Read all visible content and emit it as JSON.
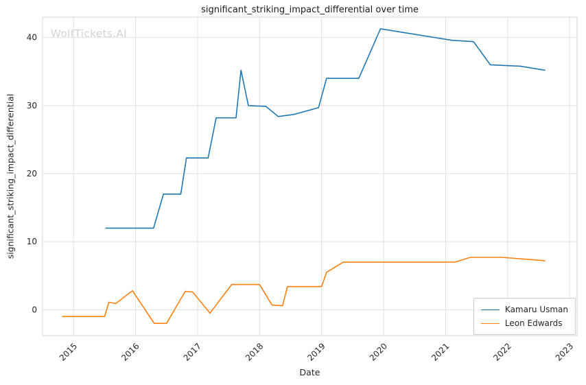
{
  "chart_data": {
    "type": "line",
    "title": "significant_striking_impact_differential over time",
    "xlabel": "Date",
    "ylabel": "significant_striking_impact_differential",
    "watermark": "WolfTickets.AI",
    "grid": true,
    "legend_position": "lower right",
    "xlim": [
      2014.5,
      2023.12
    ],
    "ylim": [
      -3.8,
      43.0
    ],
    "xticks": [
      2015,
      2016,
      2017,
      2018,
      2019,
      2020,
      2021,
      2022,
      2023
    ],
    "yticks": [
      0,
      10,
      20,
      30,
      40
    ],
    "colors": {
      "grid": "#e0e0e0",
      "border": "#d5d5d5",
      "tick_text": "#262626"
    },
    "series": [
      {
        "name": "Kamaru Usman",
        "color": "#1f77b4",
        "points": [
          [
            2015.52,
            12.0
          ],
          [
            2016.29,
            12.0
          ],
          [
            2016.45,
            17.0
          ],
          [
            2016.73,
            17.0
          ],
          [
            2016.82,
            22.3
          ],
          [
            2017.17,
            22.3
          ],
          [
            2017.3,
            28.2
          ],
          [
            2017.62,
            28.2
          ],
          [
            2017.7,
            35.2
          ],
          [
            2017.82,
            30.0
          ],
          [
            2018.1,
            29.9
          ],
          [
            2018.3,
            28.4
          ],
          [
            2018.55,
            28.7
          ],
          [
            2018.95,
            29.7
          ],
          [
            2019.08,
            34.0
          ],
          [
            2019.6,
            34.0
          ],
          [
            2019.95,
            41.3
          ],
          [
            2020.35,
            40.7
          ],
          [
            2021.1,
            39.6
          ],
          [
            2021.45,
            39.4
          ],
          [
            2021.72,
            36.0
          ],
          [
            2022.2,
            35.8
          ],
          [
            2022.6,
            35.2
          ]
        ]
      },
      {
        "name": "Leon Edwards",
        "color": "#ff7f0e",
        "points": [
          [
            2014.82,
            -1.0
          ],
          [
            2015.5,
            -1.0
          ],
          [
            2015.57,
            1.1
          ],
          [
            2015.68,
            0.9
          ],
          [
            2015.95,
            2.8
          ],
          [
            2016.3,
            -2.0
          ],
          [
            2016.5,
            -2.0
          ],
          [
            2016.8,
            2.7
          ],
          [
            2016.92,
            2.6
          ],
          [
            2017.2,
            -0.5
          ],
          [
            2017.55,
            3.7
          ],
          [
            2018.0,
            3.7
          ],
          [
            2018.2,
            0.7
          ],
          [
            2018.37,
            0.6
          ],
          [
            2018.45,
            3.4
          ],
          [
            2019.0,
            3.4
          ],
          [
            2019.08,
            5.5
          ],
          [
            2019.35,
            7.0
          ],
          [
            2021.05,
            7.0
          ],
          [
            2021.15,
            7.0
          ],
          [
            2021.4,
            7.7
          ],
          [
            2021.9,
            7.7
          ],
          [
            2022.2,
            7.5
          ],
          [
            2022.6,
            7.2
          ]
        ]
      }
    ]
  }
}
